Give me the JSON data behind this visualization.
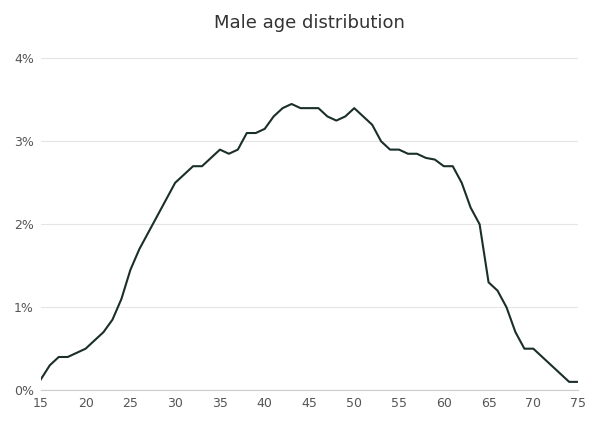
{
  "title": "Male age distribution",
  "line_color": "#1a2e2a",
  "line_width": 1.5,
  "background_color": "#ffffff",
  "xlim": [
    15,
    75
  ],
  "ylim": [
    0,
    0.042
  ],
  "xticks": [
    15,
    20,
    25,
    30,
    35,
    40,
    45,
    50,
    55,
    60,
    65,
    70,
    75
  ],
  "yticks": [
    0.0,
    0.01,
    0.02,
    0.03,
    0.04
  ],
  "ytick_labels": [
    "0%",
    "1%",
    "2%",
    "3%",
    "4%"
  ],
  "x": [
    15,
    16,
    17,
    18,
    19,
    20,
    21,
    22,
    23,
    24,
    25,
    26,
    27,
    28,
    29,
    30,
    31,
    32,
    33,
    34,
    35,
    36,
    37,
    38,
    39,
    40,
    41,
    42,
    43,
    44,
    45,
    46,
    47,
    48,
    49,
    50,
    51,
    52,
    53,
    54,
    55,
    56,
    57,
    58,
    59,
    60,
    61,
    62,
    63,
    64,
    65,
    66,
    67,
    68,
    69,
    70,
    71,
    72,
    73,
    74,
    75
  ],
  "y": [
    0.0013,
    0.003,
    0.004,
    0.004,
    0.0045,
    0.005,
    0.006,
    0.007,
    0.0085,
    0.011,
    0.0145,
    0.017,
    0.019,
    0.021,
    0.023,
    0.025,
    0.026,
    0.027,
    0.027,
    0.028,
    0.029,
    0.0285,
    0.029,
    0.031,
    0.031,
    0.0315,
    0.033,
    0.034,
    0.0345,
    0.034,
    0.034,
    0.034,
    0.033,
    0.0325,
    0.033,
    0.034,
    0.033,
    0.032,
    0.03,
    0.029,
    0.029,
    0.0285,
    0.0285,
    0.028,
    0.0278,
    0.027,
    0.027,
    0.025,
    0.022,
    0.02,
    0.013,
    0.012,
    0.01,
    0.007,
    0.005,
    0.005,
    0.004,
    0.003,
    0.002,
    0.001,
    0.001
  ]
}
